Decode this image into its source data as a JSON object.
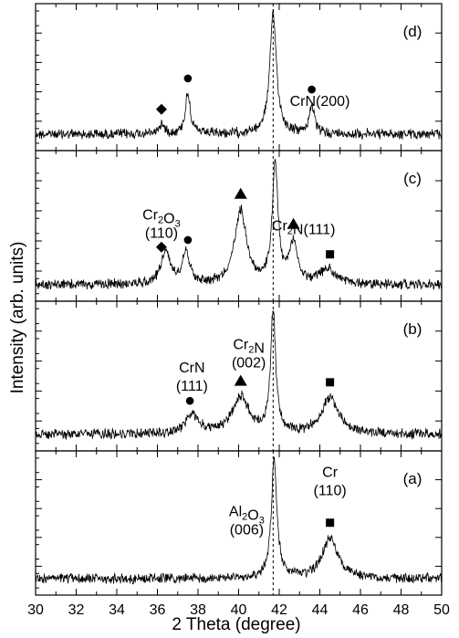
{
  "chart_data": {
    "type": "line",
    "xlabel": "2 Theta (degree)",
    "ylabel": "Intensity (arb. units)",
    "xlim": [
      30,
      50
    ],
    "x_ticks": [
      "30",
      "32",
      "34",
      "36",
      "38",
      "40",
      "42",
      "44",
      "46",
      "48",
      "50"
    ],
    "reference_line_x": 41.7,
    "panels": [
      {
        "label": "(d)",
        "peaks": [
          {
            "x": 36.2,
            "h": 0.08,
            "w": 0.18
          },
          {
            "x": 37.5,
            "h": 0.34,
            "w": 0.15
          },
          {
            "x": 41.7,
            "h": 1.0,
            "w": 0.2
          },
          {
            "x": 43.6,
            "h": 0.24,
            "w": 0.15
          }
        ],
        "markers": [
          {
            "shape": "diamond",
            "x": 36.2
          },
          {
            "shape": "circle",
            "x": 37.5
          },
          {
            "shape": "circle",
            "x": 43.6
          }
        ],
        "annotations": [
          {
            "text": "CrN(200)",
            "x": 44.0,
            "line": 1
          }
        ]
      },
      {
        "label": "(c)",
        "peaks": [
          {
            "x": 36.4,
            "h": 0.26,
            "w": 0.28
          },
          {
            "x": 37.4,
            "h": 0.26,
            "w": 0.22
          },
          {
            "x": 40.1,
            "h": 0.6,
            "w": 0.35
          },
          {
            "x": 41.8,
            "h": 0.95,
            "w": 0.17
          },
          {
            "x": 42.7,
            "h": 0.32,
            "w": 0.25
          },
          {
            "x": 44.4,
            "h": 0.12,
            "w": 0.45
          }
        ],
        "markers": [
          {
            "shape": "diamond",
            "x": 36.2
          },
          {
            "shape": "circle",
            "x": 37.5
          },
          {
            "shape": "triangle",
            "x": 40.1
          },
          {
            "shape": "triangle",
            "x": 42.7
          },
          {
            "shape": "square",
            "x": 44.5
          }
        ],
        "annotations": [
          {
            "text": "Cr2O3",
            "x": 36.2,
            "line": 2
          },
          {
            "text": "(110)",
            "x": 36.2,
            "line": 1
          },
          {
            "text": "Cr2N(111)",
            "x": 43.2,
            "line": 2
          }
        ]
      },
      {
        "label": "(b)",
        "peaks": [
          {
            "x": 37.7,
            "h": 0.15,
            "w": 0.4
          },
          {
            "x": 40.1,
            "h": 0.3,
            "w": 0.5
          },
          {
            "x": 41.7,
            "h": 1.0,
            "w": 0.15
          },
          {
            "x": 44.5,
            "h": 0.3,
            "w": 0.5
          }
        ],
        "markers": [
          {
            "shape": "circle",
            "x": 37.6
          },
          {
            "shape": "triangle",
            "x": 40.1
          },
          {
            "shape": "square",
            "x": 44.5
          }
        ],
        "annotations": [
          {
            "text": "CrN",
            "x": 37.7,
            "line": 2
          },
          {
            "text": "(111)",
            "x": 37.7,
            "line": 1
          },
          {
            "text": "Cr2N",
            "x": 40.5,
            "line": 3
          },
          {
            "text": "(002)",
            "x": 40.5,
            "line": 2
          }
        ]
      },
      {
        "label": "(a)",
        "peaks": [
          {
            "x": 41.75,
            "h": 1.0,
            "w": 0.17
          },
          {
            "x": 44.5,
            "h": 0.35,
            "w": 0.45
          }
        ],
        "markers": [
          {
            "shape": "square",
            "x": 44.5
          }
        ],
        "annotations": [
          {
            "text": "Al2O3",
            "x": 40.4,
            "line": 3
          },
          {
            "text": "(006)",
            "x": 40.4,
            "line": 2
          },
          {
            "text": "Cr",
            "x": 44.5,
            "line": 3
          },
          {
            "text": "(110)",
            "x": 44.5,
            "line": 2
          }
        ]
      }
    ]
  }
}
